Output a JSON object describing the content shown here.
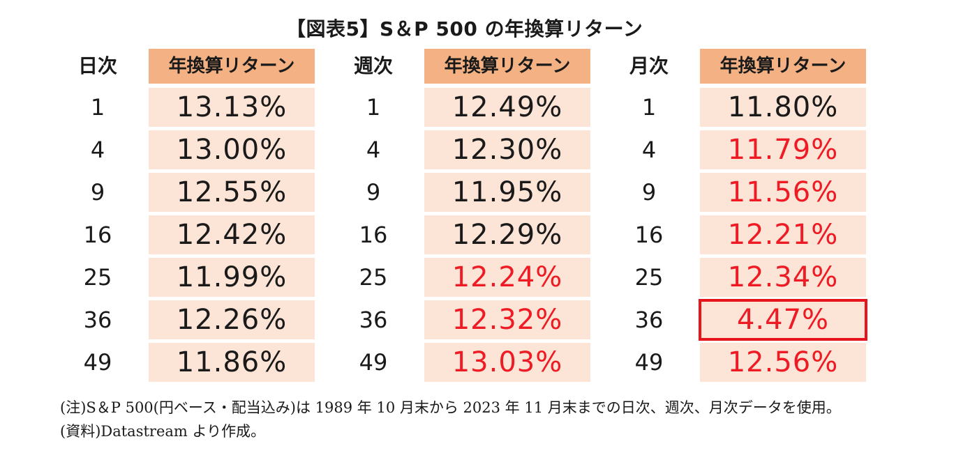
{
  "title": "【図表5】S＆P 500 の年換算リターン",
  "chart_data": {
    "type": "table",
    "title": "【図表5】S＆P 500 の年換算リターン",
    "columns": [
      {
        "frequency": "日次",
        "header": "年換算リターン",
        "rows": [
          {
            "n": "1",
            "value": "13.13%",
            "highlight": false,
            "boxed": false
          },
          {
            "n": "4",
            "value": "13.00%",
            "highlight": false,
            "boxed": false
          },
          {
            "n": "9",
            "value": "12.55%",
            "highlight": false,
            "boxed": false
          },
          {
            "n": "16",
            "value": "12.42%",
            "highlight": false,
            "boxed": false
          },
          {
            "n": "25",
            "value": "11.99%",
            "highlight": false,
            "boxed": false
          },
          {
            "n": "36",
            "value": "12.26%",
            "highlight": false,
            "boxed": false
          },
          {
            "n": "49",
            "value": "11.86%",
            "highlight": false,
            "boxed": false
          }
        ]
      },
      {
        "frequency": "週次",
        "header": "年換算リターン",
        "rows": [
          {
            "n": "1",
            "value": "12.49%",
            "highlight": false,
            "boxed": false
          },
          {
            "n": "4",
            "value": "12.30%",
            "highlight": false,
            "boxed": false
          },
          {
            "n": "9",
            "value": "11.95%",
            "highlight": false,
            "boxed": false
          },
          {
            "n": "16",
            "value": "12.29%",
            "highlight": false,
            "boxed": false
          },
          {
            "n": "25",
            "value": "12.24%",
            "highlight": true,
            "boxed": false
          },
          {
            "n": "36",
            "value": "12.32%",
            "highlight": true,
            "boxed": false
          },
          {
            "n": "49",
            "value": "13.03%",
            "highlight": true,
            "boxed": false
          }
        ]
      },
      {
        "frequency": "月次",
        "header": "年換算リターン",
        "rows": [
          {
            "n": "1",
            "value": "11.80%",
            "highlight": false,
            "boxed": false
          },
          {
            "n": "4",
            "value": "11.79%",
            "highlight": true,
            "boxed": false
          },
          {
            "n": "9",
            "value": "11.56%",
            "highlight": true,
            "boxed": false
          },
          {
            "n": "16",
            "value": "12.21%",
            "highlight": true,
            "boxed": false
          },
          {
            "n": "25",
            "value": "12.34%",
            "highlight": true,
            "boxed": false
          },
          {
            "n": "36",
            "value": "4.47%",
            "highlight": true,
            "boxed": true
          },
          {
            "n": "49",
            "value": "12.56%",
            "highlight": true,
            "boxed": false
          }
        ]
      }
    ]
  },
  "notes": [
    "(注)S＆P 500(円ベース・配当込み)は 1989 年 10 月末から 2023 年 11 月末までの日次、週次、月次データを使用。",
    "(資料)Datastream より作成。"
  ],
  "colors": {
    "header_bg": "#f4b183",
    "cell_bg": "#fce4d6",
    "highlight_text": "#ee1b24",
    "box_border": "#e8141b",
    "text": "#1a1a1a"
  }
}
